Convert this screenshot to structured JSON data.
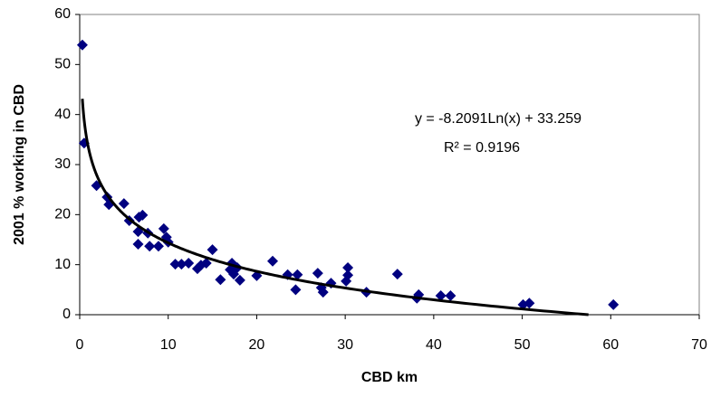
{
  "chart_data": {
    "type": "scatter",
    "x_label": "CBD km",
    "y_label": "2001 % working in  CBD",
    "color": "#000080",
    "x": [
      0.3,
      0.5,
      1.9,
      3.1,
      3.3,
      5.0,
      5.6,
      6.7,
      7.1,
      6.6,
      6.6,
      7.7,
      7.9,
      8.9,
      9.5,
      9.8,
      10.0,
      10.8,
      11.5,
      12.3,
      13.3,
      13.7,
      14.3,
      15.0,
      15.9,
      17.0,
      17.2,
      17.4,
      17.8,
      18.1,
      20.0,
      21.8,
      23.5,
      24.4,
      24.6,
      26.9,
      27.3,
      27.5,
      28.4,
      30.1,
      30.3,
      30.3,
      32.4,
      35.9,
      38.1,
      38.3,
      40.8,
      41.9,
      50.1,
      50.8,
      60.3
    ],
    "values": [
      53.9,
      34.3,
      25.8,
      23.5,
      22.0,
      22.2,
      18.8,
      19.5,
      19.9,
      16.6,
      14.1,
      16.3,
      13.7,
      13.7,
      17.2,
      15.5,
      14.5,
      10.1,
      10.1,
      10.3,
      9.2,
      9.9,
      10.3,
      13.0,
      7.0,
      9.0,
      10.3,
      8.1,
      9.4,
      6.9,
      7.8,
      10.7,
      8.0,
      5.0,
      8.0,
      8.3,
      5.4,
      4.5,
      6.3,
      6.7,
      9.4,
      7.9,
      4.5,
      8.1,
      3.3,
      4.0,
      3.8,
      3.8,
      2.0,
      2.3,
      2.0
    ],
    "xlim": [
      0,
      70
    ],
    "xticks": [
      0,
      10,
      20,
      30,
      40,
      50,
      60,
      70
    ],
    "ylim": [
      0,
      60
    ],
    "yticks": [
      0,
      10,
      20,
      30,
      40,
      50,
      60
    ],
    "trendline": {
      "slope": -8.2091,
      "intercept": 33.259,
      "color": "#000000",
      "equation": "y = -8.2091Ln(x) + 33.259",
      "r2_label": "R² = 0.9196"
    }
  }
}
